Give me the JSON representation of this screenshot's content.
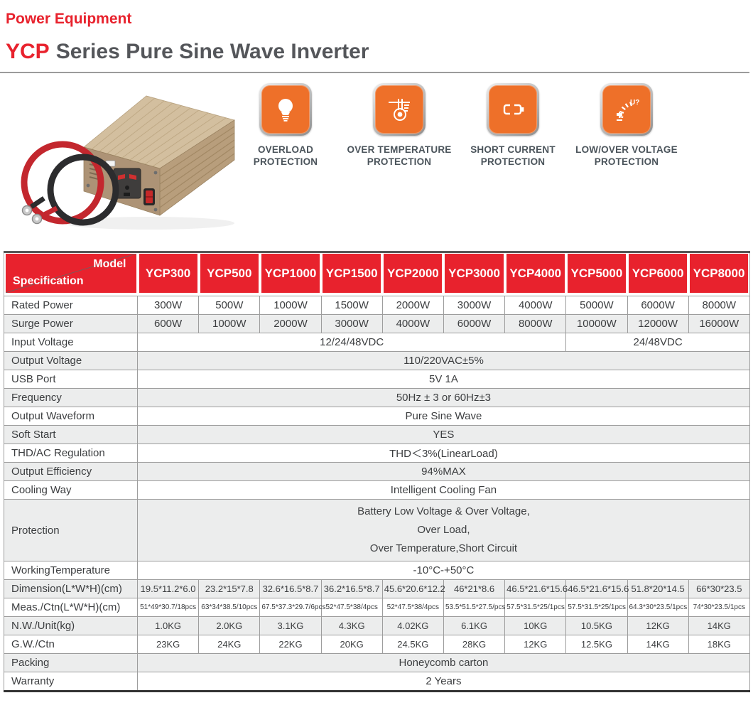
{
  "colors": {
    "accent_red": "#e8222d",
    "icon_orange": "#ee7029",
    "title_gray": "#54565a"
  },
  "header": {
    "brand": "Power Equipment",
    "title_highlight": "YCP",
    "title_rest": "Series Pure Sine Wave Inverter"
  },
  "features": [
    {
      "icon": "bulb-icon",
      "line1": "OVERLOAD",
      "line2": "PROTECTION"
    },
    {
      "icon": "thermometer-icon",
      "line1": "OVER TEMPERATURE",
      "line2": "PROTECTION"
    },
    {
      "icon": "battery-icon",
      "line1": "SHORT CURRENT",
      "line2": "PROTECTION"
    },
    {
      "icon": "voltmeter-icon",
      "line1": "LOW/OVER VOLTAGE",
      "line2": "PROTECTION"
    }
  ],
  "spec_table": {
    "corner_top": "Model",
    "corner_bottom": "Specification",
    "models": [
      "YCP300",
      "YCP500",
      "YCP1000",
      "YCP1500",
      "YCP2000",
      "YCP3000",
      "YCP4000",
      "YCP5000",
      "YCP6000",
      "YCP8000"
    ],
    "rows": [
      {
        "label": "Rated Power",
        "values": [
          "300W",
          "500W",
          "1000W",
          "1500W",
          "2000W",
          "3000W",
          "4000W",
          "5000W",
          "6000W",
          "8000W"
        ]
      },
      {
        "label": "Surge Power",
        "values": [
          "600W",
          "1000W",
          "2000W",
          "3000W",
          "4000W",
          "6000W",
          "8000W",
          "10000W",
          "12000W",
          "16000W"
        ]
      },
      {
        "label": "Input Voltage",
        "cells": [
          {
            "text": "12/24/48VDC",
            "span": 7
          },
          {
            "text": "24/48VDC",
            "span": 3
          }
        ]
      },
      {
        "label": "Output Voltage",
        "value": "110/220VAC±5%"
      },
      {
        "label": "USB Port",
        "value": "5V 1A"
      },
      {
        "label": "Frequency",
        "value": "50Hz ± 3 or 60Hz±3"
      },
      {
        "label": "Output Waveform",
        "value": "Pure Sine Wave"
      },
      {
        "label": "Soft Start",
        "value": "YES"
      },
      {
        "label": "THD/AC Regulation",
        "value": "THD＜3%(LinearLoad)"
      },
      {
        "label": "Output Efficiency",
        "value": "94%MAX"
      },
      {
        "label": "Cooling Way",
        "value": "Intelligent Cooling Fan"
      },
      {
        "label": "Protection",
        "lines": [
          "Battery Low Voltage & Over Voltage,",
          "Over Load,",
          "Over Temperature,Short Circuit"
        ]
      },
      {
        "label": "WorkingTemperature",
        "value": "-10°C-+50°C"
      },
      {
        "label": "Dimension(L*W*H)(cm)",
        "size": "sm",
        "values": [
          "19.5*11.2*6.0",
          "23.2*15*7.8",
          "32.6*16.5*8.7",
          "36.2*16.5*8.7",
          "45.6*20.6*12.2",
          "46*21*8.6",
          "46.5*21.6*15.6",
          "46.5*21.6*15.6",
          "51.8*20*14.5",
          "66*30*23.5"
        ]
      },
      {
        "label": "Meas./Ctn(L*W*H)(cm)",
        "size": "xs",
        "values": [
          "51*49*30.7/18pcs",
          "63*34*38.5/10pcs",
          "67.5*37.3*29.7/6pcs",
          "52*47.5*38/4pcs",
          "52*47.5*38/4pcs",
          "53.5*51.5*27.5/pcs",
          "57.5*31.5*25/1pcs",
          "57.5*31.5*25/1pcs",
          "64.3*30*23.5/1pcs",
          "74*30*23.5/1pcs"
        ]
      },
      {
        "label": "N.W./Unit(kg)",
        "size": "sm",
        "values": [
          "1.0KG",
          "2.0KG",
          "3.1KG",
          "4.3KG",
          "4.02KG",
          "6.1KG",
          "10KG",
          "10.5KG",
          "12KG",
          "14KG"
        ]
      },
      {
        "label": "G.W./Ctn",
        "size": "sm",
        "values": [
          "23KG",
          "24KG",
          "22KG",
          "20KG",
          "24.5KG",
          "28KG",
          "12KG",
          "12.5KG",
          "14KG",
          "18KG"
        ]
      },
      {
        "label": "Packing",
        "value": "Honeycomb carton"
      },
      {
        "label": "Warranty",
        "value": "2 Years"
      }
    ]
  }
}
